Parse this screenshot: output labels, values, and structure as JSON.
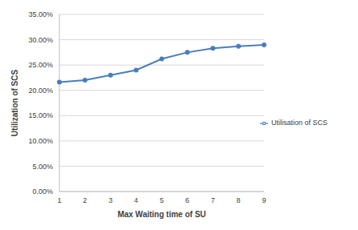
{
  "chart_data": {
    "type": "line",
    "x_label": "Max Waiting time of SU",
    "y_label": "Utilization of SCS",
    "categories": [
      "1",
      "2",
      "3",
      "4",
      "5",
      "6",
      "7",
      "8",
      "9"
    ],
    "series": [
      {
        "name": "Utilisation of SCS",
        "color": "#4a7ebb",
        "marker": "circle",
        "values": [
          21.6,
          22.0,
          23.0,
          24.0,
          26.2,
          27.5,
          28.3,
          28.7,
          29.0
        ]
      }
    ],
    "ylim": [
      0,
      35
    ],
    "yticks": [
      {
        "value": 0,
        "label": "0.00%"
      },
      {
        "value": 5,
        "label": "5.00%"
      },
      {
        "value": 10,
        "label": "10.00%"
      },
      {
        "value": 15,
        "label": "15.00%"
      },
      {
        "value": 20,
        "label": "20.00%"
      },
      {
        "value": 25,
        "label": "25.00%"
      },
      {
        "value": 30,
        "label": "30.00%"
      },
      {
        "value": 35,
        "label": "35.00%"
      }
    ],
    "grid": true,
    "legend": "right"
  }
}
